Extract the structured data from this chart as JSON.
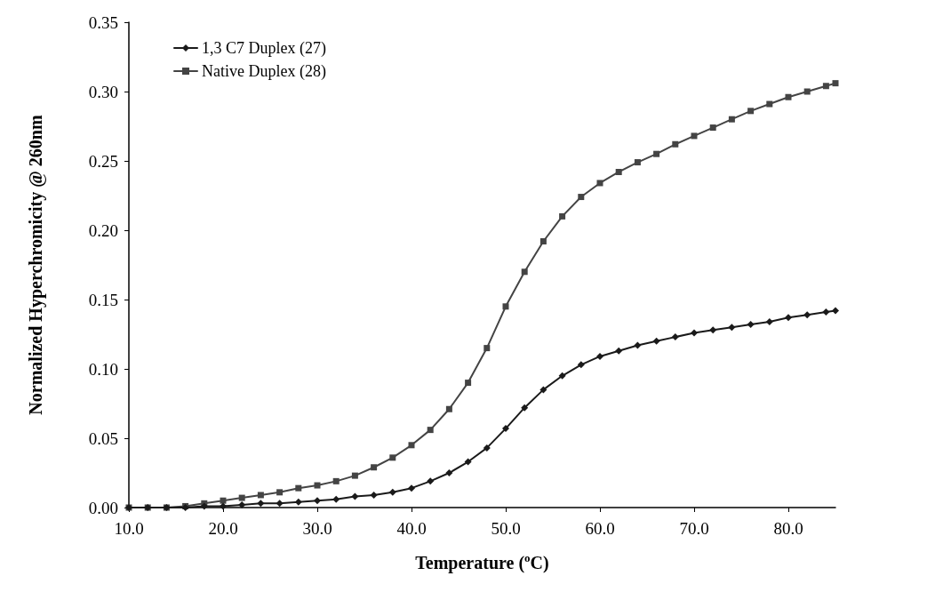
{
  "chart_data": {
    "type": "line",
    "xlabel": "Temperature ($^{o}$C)",
    "ylabel": "Normalized Hyperchromicity @ 260nm",
    "x": [
      10,
      12,
      14,
      16,
      18,
      20,
      22,
      24,
      26,
      28,
      30,
      32,
      34,
      36,
      38,
      40,
      42,
      44,
      46,
      48,
      50,
      52,
      54,
      56,
      58,
      60,
      62,
      64,
      66,
      68,
      70,
      72,
      74,
      76,
      78,
      80,
      82,
      84,
      85
    ],
    "series": [
      {
        "name": "1,3 C7 Duplex (27)",
        "color": "#1a1a1a",
        "marker": "diamond",
        "values": [
          0,
          0,
          0,
          0,
          0.001,
          0.001,
          0.002,
          0.003,
          0.003,
          0.004,
          0.005,
          0.006,
          0.008,
          0.009,
          0.011,
          0.014,
          0.019,
          0.025,
          0.033,
          0.043,
          0.057,
          0.072,
          0.085,
          0.095,
          0.103,
          0.109,
          0.113,
          0.117,
          0.12,
          0.123,
          0.126,
          0.128,
          0.13,
          0.132,
          0.134,
          0.137,
          0.139,
          0.141,
          0.142
        ]
      },
      {
        "name": "Native Duplex (28)",
        "color": "#444444",
        "marker": "square",
        "values": [
          0,
          0,
          0,
          0.001,
          0.003,
          0.005,
          0.007,
          0.009,
          0.011,
          0.014,
          0.016,
          0.019,
          0.023,
          0.029,
          0.036,
          0.045,
          0.056,
          0.071,
          0.09,
          0.115,
          0.145,
          0.17,
          0.192,
          0.21,
          0.224,
          0.234,
          0.242,
          0.249,
          0.255,
          0.262,
          0.268,
          0.274,
          0.28,
          0.286,
          0.291,
          0.296,
          0.3,
          0.304,
          0.306
        ]
      }
    ],
    "xlim": [
      10,
      85
    ],
    "xticks": [
      {
        "value": 10,
        "label": "10.0"
      },
      {
        "value": 20,
        "label": "20.0"
      },
      {
        "value": 30,
        "label": "30.0"
      },
      {
        "value": 40,
        "label": "40.0"
      },
      {
        "value": 50,
        "label": "50.0"
      },
      {
        "value": 60,
        "label": "60.0"
      },
      {
        "value": 70,
        "label": "70.0"
      },
      {
        "value": 80,
        "label": "80.0"
      }
    ],
    "ylim": [
      0,
      0.35
    ],
    "yticks": [
      {
        "value": 0,
        "label": "0.00"
      },
      {
        "value": 0.05,
        "label": "0.05"
      },
      {
        "value": 0.1,
        "label": "0.10"
      },
      {
        "value": 0.15,
        "label": "0.15"
      },
      {
        "value": 0.2,
        "label": "0.20"
      },
      {
        "value": 0.25,
        "label": "0.25"
      },
      {
        "value": 0.3,
        "label": "0.30"
      },
      {
        "value": 0.35,
        "label": "0.35"
      }
    ],
    "grid": false,
    "legend": "top left",
    "line_style": "solid"
  }
}
